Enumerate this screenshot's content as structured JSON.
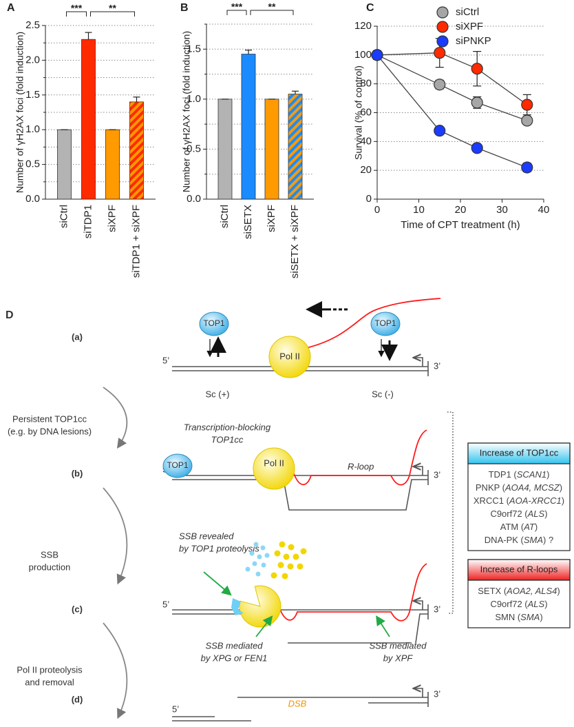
{
  "chart_data": [
    {
      "panel": "A",
      "type": "bar",
      "ylabel": "Number of γH2AX foci (fold induction)",
      "categories": [
        "siCtrl",
        "siTDP1",
        "siXPF",
        "siTDP1 + siXPF"
      ],
      "values": [
        1.0,
        2.3,
        1.0,
        1.4
      ],
      "errors": [
        0,
        0.1,
        0,
        0.07
      ],
      "colors": [
        "#b3b3b3",
        "#ff2a00",
        "#ff9a00",
        "#ff2a00"
      ],
      "hatched": [
        false,
        false,
        false,
        true
      ],
      "hatch_color": "#ff9a00",
      "ylim": [
        0,
        2.5
      ],
      "yticks": [
        {
          "value": 0,
          "label": "0.0"
        },
        0.5,
        {
          "value": 1,
          "label": "1.0"
        },
        1.5,
        {
          "value": 2,
          "label": "2.0"
        },
        2.5
      ],
      "minor_yticks": [
        0.25,
        0.75,
        1.25,
        1.75,
        2.25
      ],
      "grid": true,
      "significance": [
        {
          "between": [
            "siCtrl",
            "siTDP1"
          ],
          "label": "***"
        },
        {
          "between": [
            "siTDP1",
            "siTDP1 + siXPF"
          ],
          "label": "**"
        }
      ]
    },
    {
      "panel": "B",
      "type": "bar",
      "ylabel": "Number of γH2AX foci (fold induction)",
      "categories": [
        "siCtrl",
        "siSETX",
        "siXPF",
        "siSETX + siXPF"
      ],
      "values": [
        1.0,
        1.45,
        1.0,
        1.05
      ],
      "errors": [
        0,
        0.04,
        0,
        0.03
      ],
      "colors": [
        "#b3b3b3",
        "#1a8cff",
        "#ff9a00",
        "#1a8cff"
      ],
      "hatched": [
        false,
        false,
        false,
        true
      ],
      "hatch_color": "#ff9a00",
      "ylim": [
        0,
        1.75
      ],
      "yticks": [
        {
          "value": 0,
          "label": "0.0"
        },
        0.5,
        {
          "value": 1,
          "label": "1.0"
        },
        1.5
      ],
      "minor_yticks": [
        0.25,
        0.75,
        1.25,
        1.75
      ],
      "grid": true,
      "significance": [
        {
          "between": [
            "siCtrl",
            "siSETX"
          ],
          "label": "***"
        },
        {
          "between": [
            "siSETX",
            "siSETX + siXPF"
          ],
          "label": "**"
        }
      ]
    },
    {
      "panel": "C",
      "type": "line",
      "xlabel": "Time of CPT treatment (h)",
      "ylabel": "Survival (% of control)",
      "x": [
        0,
        15,
        24,
        36
      ],
      "series": [
        {
          "name": "siCtrl",
          "color": "#a6a6a6",
          "values": [
            100,
            79.5,
            67,
            54.5
          ],
          "errors": [
            3,
            3,
            4,
            2
          ]
        },
        {
          "name": "siXPF",
          "color": "#ff2a00",
          "values": [
            100,
            101.5,
            90.5,
            65.5
          ],
          "errors": [
            3,
            10,
            12,
            7
          ]
        },
        {
          "name": "siPNKP",
          "color": "#1a3cff",
          "values": [
            100,
            47.5,
            35.5,
            22
          ],
          "errors": [
            3,
            2,
            2,
            3
          ]
        }
      ],
      "xlim": [
        0,
        40
      ],
      "xticks": [
        0,
        10,
        20,
        30,
        40
      ],
      "ylim": [
        0,
        120
      ],
      "yticks": [
        0,
        20,
        40,
        60,
        80,
        100,
        120
      ],
      "grid": true,
      "legend": "upper right"
    }
  ],
  "diagram": {
    "panel": "D",
    "steps": [
      "(a)",
      "(b)",
      "(c)",
      "(d)"
    ],
    "transitions": [
      [
        "Persistent TOP1cc",
        "(e.g. by DNA lesions)"
      ],
      [
        "SSB",
        "production"
      ],
      [
        "Pol II proteolysis",
        "and removal"
      ]
    ],
    "five_prime": "5’",
    "three_prime": "3’",
    "top1": "TOP1",
    "pol2": "Pol II",
    "supercoil": [
      "Sc (+)",
      "Sc (-)"
    ],
    "blocking_label": [
      "Transcription-blocking",
      "TOP1cc"
    ],
    "r_loop": "R-loop",
    "ssb_top1": [
      "SSB revealed",
      "by TOP1 proteolysis"
    ],
    "ssb_xpg": [
      "SSB mediated",
      "by XPG or FEN1"
    ],
    "ssb_xpf": [
      "SSB mediated",
      "by XPF"
    ],
    "dsb": "DSB",
    "boxes": [
      {
        "title": "Increase of TOP1cc",
        "items": [
          [
            "TDP1 (",
            "SCAN1",
            ")"
          ],
          [
            "PNKP (",
            "AOA4, MCSZ",
            ")"
          ],
          [
            "XRCC1 (",
            "AOA-XRCC1",
            ")"
          ],
          [
            "C9orf72 (",
            "ALS",
            ")"
          ],
          [
            "ATM (",
            "AT",
            ")"
          ],
          [
            "DNA-PK (",
            "SMA",
            ") ?"
          ]
        ]
      },
      {
        "title": "Increase of R-loops",
        "items": [
          [
            "SETX (",
            "AOA2, ALS4",
            ")"
          ],
          [
            "C9orf72 (",
            "ALS",
            ")"
          ],
          [
            "SMN (",
            "SMA",
            ")"
          ]
        ]
      }
    ]
  }
}
